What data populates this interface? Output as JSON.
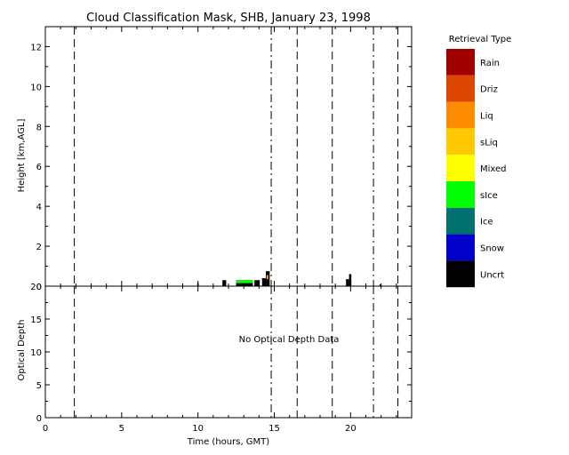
{
  "chart_data": [
    {
      "type": "bar",
      "title": "Cloud Classification Mask, SHB, January 23, 1998",
      "xlabel": "",
      "ylabel": "Height [km,AGL]",
      "xlim": [
        0,
        24
      ],
      "ylim": [
        0,
        13
      ],
      "xticks": [
        0,
        5,
        10,
        15,
        20
      ],
      "xtick_labels": [
        "",
        "",
        "",
        "",
        ""
      ],
      "yticks": [
        0,
        2,
        4,
        6,
        8,
        10,
        12
      ],
      "ytick_labels": [
        "0",
        "2",
        "4",
        "6",
        "8",
        "10",
        "12"
      ],
      "vlines": [
        {
          "x": 1.9,
          "style": "dashed"
        },
        {
          "x": 14.8,
          "style": "dashdot"
        },
        {
          "x": 16.5,
          "style": "dashed"
        },
        {
          "x": 18.8,
          "style": "dashed"
        },
        {
          "x": 21.5,
          "style": "dashdot"
        },
        {
          "x": 23.1,
          "style": "dashed"
        }
      ],
      "cloud_cells": [
        {
          "x0": 9.95,
          "x1": 10.05,
          "y0": 0.0,
          "y1": 0.15,
          "type": "Uncrt"
        },
        {
          "x0": 11.6,
          "x1": 11.85,
          "y0": 0.0,
          "y1": 0.3,
          "type": "Uncrt"
        },
        {
          "x0": 12.5,
          "x1": 13.6,
          "y0": 0.0,
          "y1": 0.3,
          "type": "Uncrt"
        },
        {
          "x0": 12.5,
          "x1": 13.6,
          "y0": 0.15,
          "y1": 0.3,
          "type": "sIce"
        },
        {
          "x0": 13.7,
          "x1": 14.05,
          "y0": 0.0,
          "y1": 0.3,
          "type": "Uncrt"
        },
        {
          "x0": 14.2,
          "x1": 14.45,
          "y0": 0.0,
          "y1": 0.4,
          "type": "Uncrt"
        },
        {
          "x0": 14.45,
          "x1": 14.7,
          "y0": 0.0,
          "y1": 0.75,
          "type": "Uncrt"
        },
        {
          "x0": 14.5,
          "x1": 14.6,
          "y0": 0.35,
          "y1": 0.55,
          "type": "sLiq"
        },
        {
          "x0": 19.7,
          "x1": 19.9,
          "y0": 0.0,
          "y1": 0.35,
          "type": "Uncrt"
        },
        {
          "x0": 19.9,
          "x1": 20.05,
          "y0": 0.0,
          "y1": 0.6,
          "type": "Uncrt"
        },
        {
          "x0": 21.9,
          "x1": 21.95,
          "y0": 0.0,
          "y1": 0.1,
          "type": "Uncrt"
        }
      ],
      "legend": {
        "title": "Retrieval Type",
        "placement": "right",
        "entries": [
          {
            "label": "Rain",
            "color": "#a00000"
          },
          {
            "label": "Driz",
            "color": "#dc4600"
          },
          {
            "label": "Liq",
            "color": "#ff8c00"
          },
          {
            "label": "sLiq",
            "color": "#ffc800"
          },
          {
            "label": "Mixed",
            "color": "#ffff00"
          },
          {
            "label": "sIce",
            "color": "#00ff00"
          },
          {
            "label": "Ice",
            "color": "#007070"
          },
          {
            "label": "Snow",
            "color": "#0000c8"
          },
          {
            "label": "Uncrt",
            "color": "#000000"
          }
        ]
      }
    },
    {
      "type": "line",
      "title": "",
      "xlabel": "Time (hours, GMT)",
      "ylabel": "Optical Depth",
      "xlim": [
        0,
        24
      ],
      "ylim": [
        0,
        20
      ],
      "xticks": [
        0,
        5,
        10,
        15,
        20
      ],
      "xtick_labels": [
        "0",
        "5",
        "10",
        "15",
        "20"
      ],
      "yticks": [
        0,
        5,
        10,
        15,
        20
      ],
      "ytick_labels": [
        "0",
        "5",
        "10",
        "15",
        "20"
      ],
      "vlines": [
        {
          "x": 1.9,
          "style": "dashed"
        },
        {
          "x": 14.8,
          "style": "dashdot"
        },
        {
          "x": 16.5,
          "style": "dashed"
        },
        {
          "x": 18.8,
          "style": "dashed"
        },
        {
          "x": 21.5,
          "style": "dashdot"
        },
        {
          "x": 23.1,
          "style": "dashed"
        }
      ],
      "annotation": {
        "text": "No Optical Depth Data",
        "x": 14.4,
        "y": 12.5
      },
      "series": []
    }
  ]
}
